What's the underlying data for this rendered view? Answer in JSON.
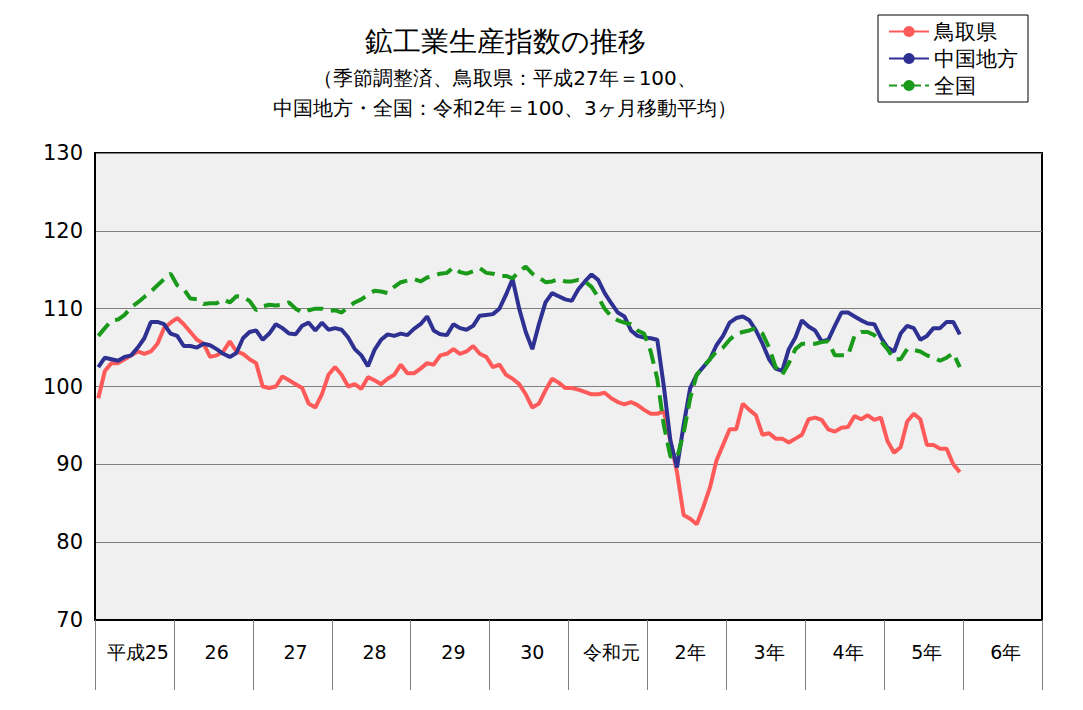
{
  "chart_data": {
    "type": "line",
    "title": "鉱工業生産指数の推移",
    "subtitle": "（季節調整済、鳥取県：平成27年＝100、\n中国地方・全国：令和2年＝100、3ヶ月移動平均）",
    "categories": [
      null,
      null,
      null,
      null,
      null,
      null,
      "平成25",
      null,
      null,
      null,
      null,
      null,
      null,
      null,
      null,
      null,
      null,
      null,
      "26",
      null,
      null,
      null,
      null,
      null,
      null,
      null,
      null,
      null,
      null,
      null,
      "27",
      null,
      null,
      null,
      null,
      null,
      null,
      null,
      null,
      null,
      null,
      null,
      "28",
      null,
      null,
      null,
      null,
      null,
      null,
      null,
      null,
      null,
      null,
      null,
      "29",
      null,
      null,
      null,
      null,
      null,
      null,
      null,
      null,
      null,
      null,
      null,
      "30",
      null,
      null,
      null,
      null,
      null,
      null,
      null,
      null,
      null,
      null,
      null,
      "令和元",
      null,
      null,
      null,
      null,
      null,
      null,
      null,
      null,
      null,
      null,
      null,
      "2年",
      null,
      null,
      null,
      null,
      null,
      null,
      null,
      null,
      null,
      null,
      null,
      "3年",
      null,
      null,
      null,
      null,
      null,
      null,
      null,
      null,
      null,
      null,
      null,
      "4年",
      null,
      null,
      null,
      null,
      null,
      null,
      null,
      null,
      null,
      null,
      null,
      "5年",
      null,
      null,
      null,
      null,
      null,
      null,
      null,
      null,
      null,
      null,
      null,
      "6年",
      null,
      null,
      null,
      null,
      null
    ],
    "series": [
      {
        "name": "鳥取県",
        "color": "#ff5a5a",
        "line_style": "solid",
        "values": [
          98.5,
          102,
          103,
          103,
          103.5,
          104,
          104.5,
          104.2,
          104.5,
          105.5,
          107.5,
          108.2,
          108.8,
          108,
          107,
          106,
          105.5,
          103.8,
          104,
          104.5,
          105.8,
          104.5,
          104.2,
          103.5,
          103,
          100,
          99.8,
          100,
          101.3,
          100.8,
          100.3,
          99.8,
          97.8,
          97.3,
          99,
          101.5,
          102.5,
          101.5,
          100,
          100.3,
          99.7,
          101.2,
          100.8,
          100.3,
          101,
          101.5,
          102.8,
          101.7,
          101.7,
          102.3,
          103,
          102.8,
          104,
          104.2,
          104.8,
          104.2,
          104.5,
          105.2,
          104.2,
          103.8,
          102.5,
          102.8,
          101.5,
          101,
          100.3,
          99,
          97.3,
          97.8,
          99.5,
          101,
          100.5,
          99.8,
          99.8,
          99.6,
          99.3,
          99,
          99,
          99.2,
          98.5,
          98,
          97.7,
          98,
          97.6,
          97,
          96.5,
          96.5,
          96.8,
          93,
          89,
          83.5,
          83,
          82.3,
          84.5,
          87,
          90.5,
          92.5,
          94.5,
          94.5,
          97.8,
          97,
          96.3,
          93.8,
          94,
          93.3,
          93.3,
          92.8,
          93.3,
          93.8,
          95.8,
          96,
          95.7,
          94.5,
          94.2,
          94.7,
          94.8,
          96.2,
          95.8,
          96.3,
          95.7,
          96,
          93,
          91.5,
          92.2,
          95.5,
          96.5,
          95.8,
          92.5,
          92.5,
          92,
          92,
          90,
          89,
          null,
          null,
          null,
          null,
          null,
          null,
          null,
          null,
          null,
          null,
          null,
          null
        ]
      },
      {
        "name": "中国地方",
        "color": "#2e3192",
        "line_style": "solid",
        "values": [
          102.5,
          103.7,
          103.5,
          103.3,
          103.8,
          104,
          105,
          106.2,
          108.3,
          108.3,
          108,
          106.8,
          106.5,
          105.2,
          105.2,
          105,
          105.5,
          105.3,
          104.8,
          104.2,
          103.8,
          104.3,
          106.2,
          107,
          107.2,
          106,
          106.8,
          108,
          107.5,
          106.8,
          106.7,
          107.8,
          108.2,
          107.2,
          108.2,
          107.3,
          107.5,
          107.3,
          106.3,
          104.8,
          104,
          102.6,
          104.7,
          106,
          106.7,
          106.5,
          106.8,
          106.6,
          107.4,
          108,
          109,
          107.2,
          106.7,
          106.6,
          108,
          107.5,
          107.3,
          107.8,
          109.1,
          109.2,
          109.3,
          110,
          111.8,
          113.8,
          110,
          107,
          104.8,
          108,
          110.8,
          112,
          111.6,
          111.2,
          111,
          112.5,
          113.5,
          114.4,
          113.7,
          112,
          110.7,
          109.5,
          109,
          107.2,
          106.5,
          106.3,
          106.2,
          106,
          100,
          93,
          89.6,
          95,
          99.8,
          101.5,
          102.5,
          103.5,
          105.3,
          106.5,
          108.2,
          108.8,
          109,
          108.5,
          107.2,
          105.5,
          103.5,
          102.3,
          102,
          104.8,
          106.3,
          108.5,
          107.7,
          107.2,
          105.8,
          106,
          107.8,
          109.5,
          109.5,
          109,
          108.5,
          108.1,
          108,
          106.3,
          105,
          104.5,
          106.8,
          107.8,
          107.5,
          106,
          106.5,
          107.5,
          107.5,
          108.3,
          108.3,
          106.7,
          null,
          null,
          null,
          null,
          null,
          null,
          null,
          null,
          null,
          null,
          null,
          null
        ]
      },
      {
        "name": "全国",
        "color": "#1a9a1a",
        "line_style": "dashed",
        "values": [
          106.5,
          107.5,
          108.5,
          108.6,
          109.2,
          110.2,
          110.8,
          111.5,
          112.2,
          113,
          113.8,
          114.5,
          113,
          112.5,
          111.3,
          111.2,
          110.6,
          110.7,
          110.7,
          111.2,
          110.8,
          111.6,
          111.5,
          111,
          109.8,
          110.3,
          110.5,
          110.4,
          110.5,
          110.8,
          110,
          109.5,
          109.8,
          110,
          110,
          109.7,
          109.8,
          109.5,
          110.2,
          110.8,
          111.2,
          111.8,
          112.3,
          112.2,
          112,
          112.8,
          113.4,
          113.6,
          113.8,
          113.5,
          114,
          114.2,
          114.5,
          114.6,
          115.3,
          114.7,
          114.5,
          114.8,
          115.2,
          114.6,
          114.5,
          114.2,
          114.2,
          113.9,
          114.8,
          115.4,
          114.5,
          114,
          113.4,
          113.5,
          113.8,
          113.5,
          113.5,
          113.7,
          113.5,
          112.8,
          111.5,
          110,
          109,
          108.5,
          108.2,
          108,
          107.2,
          106.8,
          104.5,
          101,
          95,
          91,
          90.8,
          94,
          98.5,
          101.5,
          102.5,
          103.5,
          104.5,
          105,
          106,
          106.8,
          107,
          107.2,
          107.5,
          106.8,
          105,
          102.5,
          101.5,
          103,
          104.8,
          105.5,
          105.5,
          105.5,
          105.7,
          105.8,
          104,
          104,
          104,
          106.5,
          107,
          107,
          106.6,
          105.8,
          104.8,
          103.5,
          103.5,
          104.8,
          104.7,
          104.5,
          104,
          103.7,
          103.3,
          103.7,
          104.3,
          102.5,
          null,
          null,
          null,
          null,
          null,
          null,
          null,
          null,
          null,
          null,
          null,
          null
        ]
      }
    ],
    "ylim": [
      70,
      130
    ],
    "yticks": [
      70,
      80,
      90,
      100,
      110,
      120,
      130
    ],
    "grid": true,
    "legend": "top-right"
  }
}
